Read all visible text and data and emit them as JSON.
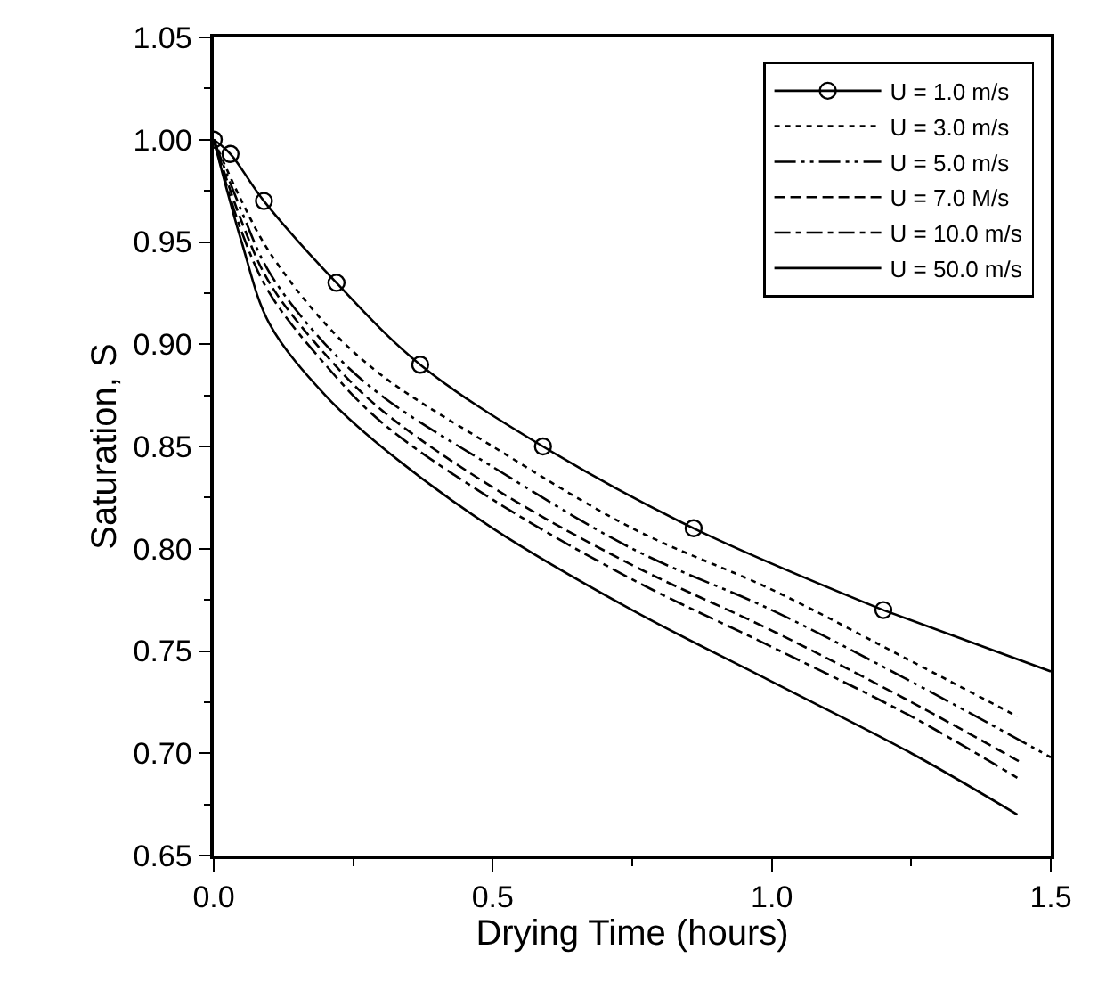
{
  "chart_data": {
    "type": "line",
    "xlabel": "Drying Time (hours)",
    "ylabel": "Saturation, S",
    "xlim": [
      0,
      1.5
    ],
    "ylim": [
      0.65,
      1.05
    ],
    "xticks": [
      {
        "value": 0,
        "label": "0.0"
      },
      0.5,
      {
        "value": 1,
        "label": "1.0"
      },
      1.5
    ],
    "yticks": [
      0.65,
      {
        "value": 0.7,
        "label": "0.70"
      },
      0.75,
      {
        "value": 0.8,
        "label": "0.80"
      },
      0.85,
      {
        "value": 0.9,
        "label": "0.90"
      },
      0.95,
      {
        "value": 1,
        "label": "1.00"
      },
      1.05
    ],
    "legend": "top right",
    "series": [
      {
        "name": "U = 1.0 m/s",
        "color": "#000000",
        "line_style": "solid",
        "marker": "circle",
        "x": [
          0,
          0.03,
          0.09,
          0.22,
          0.37,
          0.59,
          0.86,
          1.2
        ],
        "values": [
          1.0,
          0.993,
          0.97,
          0.93,
          0.89,
          0.85,
          0.81,
          0.77
        ]
      },
      {
        "color": "#000000",
        "line_style": "solid",
        "marker": "none",
        "x": [
          1.2,
          1.5
        ],
        "values": [
          0.77,
          0.74
        ]
      },
      {
        "name": "U = 3.0 m/s",
        "color": "#000000",
        "line_style": "dotted",
        "marker": "none",
        "x": [
          0,
          0.05,
          0.1,
          0.2,
          0.3,
          0.5,
          0.75,
          1.0,
          1.25,
          1.44
        ],
        "values": [
          1.0,
          0.97,
          0.945,
          0.91,
          0.885,
          0.85,
          0.81,
          0.78,
          0.745,
          0.718
        ]
      },
      {
        "name": "U = 5.0 m/s",
        "color": "#000000",
        "line_style": "dashdotdot",
        "marker": "none",
        "x": [
          0,
          0.05,
          0.1,
          0.2,
          0.3,
          0.5,
          0.75,
          1.0,
          1.25,
          1.5
        ],
        "values": [
          1.0,
          0.965,
          0.935,
          0.9,
          0.875,
          0.84,
          0.8,
          0.77,
          0.735,
          0.698
        ]
      },
      {
        "name": "U = 7.0 M/s",
        "color": "#000000",
        "line_style": "dashed",
        "marker": "none",
        "x": [
          0,
          0.05,
          0.1,
          0.2,
          0.3,
          0.5,
          0.75,
          1.0,
          1.25,
          1.45
        ],
        "values": [
          1.0,
          0.96,
          0.93,
          0.895,
          0.868,
          0.83,
          0.792,
          0.76,
          0.725,
          0.695
        ]
      },
      {
        "name": "U = 10.0 m/s",
        "color": "#000000",
        "line_style": "dashdot",
        "marker": "none",
        "x": [
          0,
          0.05,
          0.1,
          0.2,
          0.3,
          0.5,
          0.75,
          1.0,
          1.25,
          1.44
        ],
        "values": [
          1.0,
          0.955,
          0.925,
          0.89,
          0.862,
          0.824,
          0.785,
          0.752,
          0.718,
          0.688
        ]
      },
      {
        "name": "U = 50.0 m/s",
        "color": "#000000",
        "line_style": "solid",
        "marker": "none",
        "x": [
          0,
          0.05,
          0.1,
          0.2,
          0.3,
          0.5,
          0.75,
          1.0,
          1.25,
          1.44
        ],
        "values": [
          1.0,
          0.95,
          0.91,
          0.875,
          0.85,
          0.81,
          0.77,
          0.735,
          0.7,
          0.67
        ]
      }
    ]
  }
}
